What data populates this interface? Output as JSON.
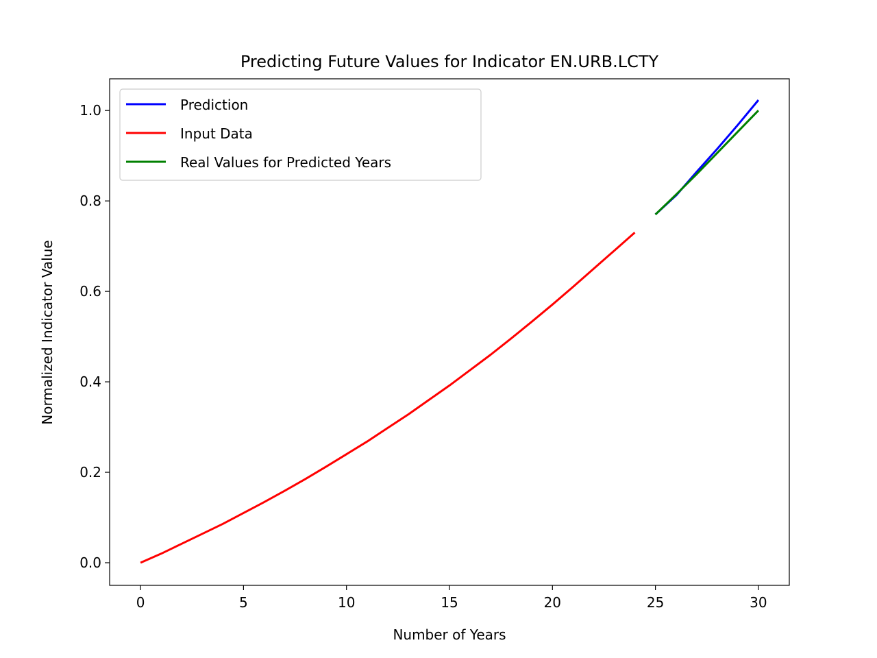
{
  "chart_data": {
    "type": "line",
    "title": "Predicting Future Values for Indicator EN.URB.LCTY",
    "xlabel": "Number of Years",
    "ylabel": "Normalized Indicator Value",
    "xlim": [
      -1.5,
      31.5
    ],
    "ylim": [
      -0.05,
      1.07
    ],
    "xticks": [
      0,
      5,
      10,
      15,
      20,
      25,
      30
    ],
    "xtick_labels": [
      "0",
      "5",
      "10",
      "15",
      "20",
      "25",
      "30"
    ],
    "yticks": [
      0.0,
      0.2,
      0.4,
      0.6,
      0.8,
      1.0
    ],
    "ytick_labels": [
      "0.0",
      "0.2",
      "0.4",
      "0.6",
      "0.8",
      "1.0"
    ],
    "grid": false,
    "legend_position": "top-left",
    "series": [
      {
        "name": "Prediction",
        "color": "#0000ff",
        "x": [
          25,
          26,
          27,
          28,
          29,
          30
        ],
        "y": [
          0.77,
          0.812,
          0.864,
          0.915,
          0.968,
          1.023
        ]
      },
      {
        "name": "Input Data",
        "color": "#ff0000",
        "x": [
          0,
          1,
          2,
          3,
          4,
          5,
          6,
          7,
          8,
          9,
          10,
          11,
          12,
          13,
          14,
          15,
          16,
          17,
          18,
          19,
          20,
          21,
          22,
          23,
          24
        ],
        "y": [
          0.0,
          0.02,
          0.042,
          0.064,
          0.086,
          0.11,
          0.134,
          0.159,
          0.185,
          0.212,
          0.24,
          0.268,
          0.298,
          0.328,
          0.36,
          0.392,
          0.426,
          0.46,
          0.496,
          0.533,
          0.571,
          0.61,
          0.65,
          0.69,
          0.73
        ]
      },
      {
        "name": "Real Values for Predicted Years",
        "color": "#008000",
        "x": [
          25,
          26,
          27,
          28,
          29,
          30
        ],
        "y": [
          0.77,
          0.814,
          0.859,
          0.906,
          0.953,
          1.0
        ]
      }
    ]
  }
}
